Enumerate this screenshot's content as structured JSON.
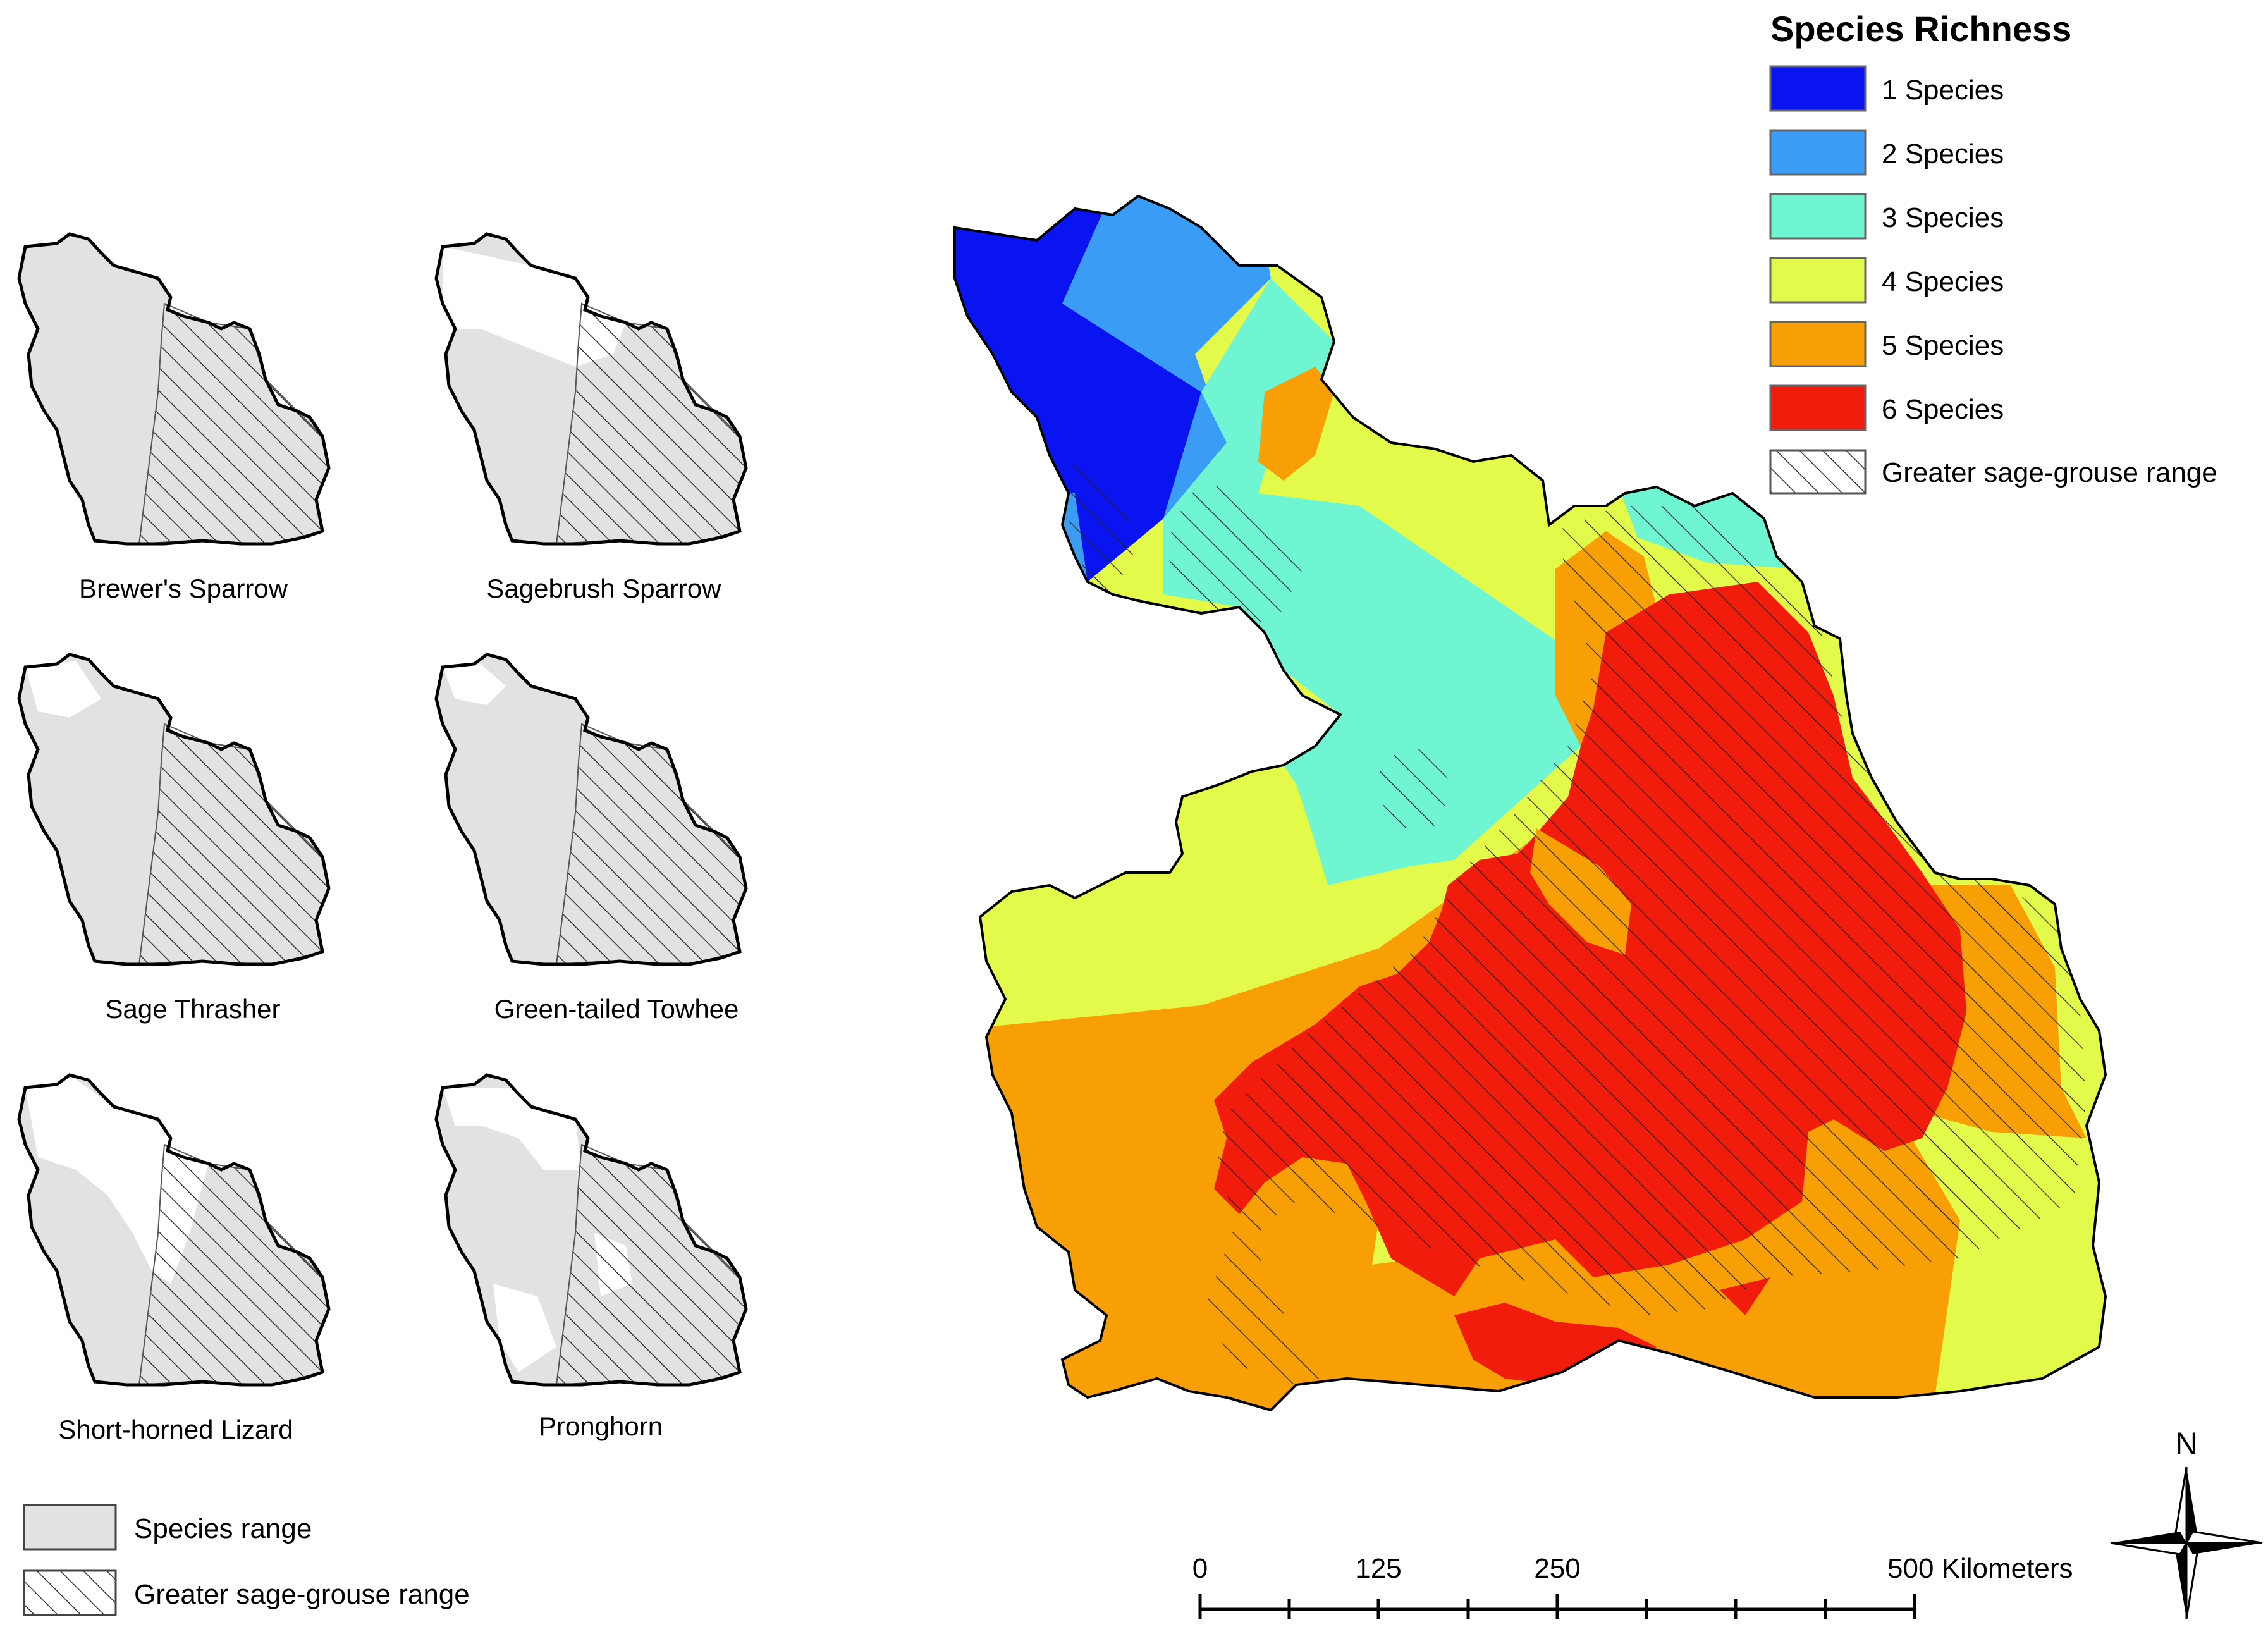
{
  "richness_legend": {
    "title": "Species Richness",
    "items": [
      {
        "label": "1 Species",
        "color": "#0a14f0"
      },
      {
        "label": "2 Species",
        "color": "#3b9cf5"
      },
      {
        "label": "3 Species",
        "color": "#6ff5d2"
      },
      {
        "label": "4 Species",
        "color": "#e4fa4a"
      },
      {
        "label": "5 Species",
        "color": "#f99f06"
      },
      {
        "label": "6 Species",
        "color": "#f21c0c"
      }
    ],
    "hatch_label": "Greater sage-grouse range"
  },
  "panels": [
    {
      "name": "Brewer's Sparrow"
    },
    {
      "name": "Sagebrush Sparrow"
    },
    {
      "name": "Sage Thrasher"
    },
    {
      "name": "Green-tailed Towhee"
    },
    {
      "name": "Short-horned Lizard"
    },
    {
      "name": "Pronghorn"
    }
  ],
  "small_legend": {
    "species_range_label": "Species range",
    "species_range_color": "#e2e2e2",
    "hatch_label": "Greater sage-grouse range"
  },
  "scale_bar": {
    "ticks": [
      "0",
      "125",
      "250",
      "500 Kilometers"
    ]
  },
  "north_arrow": {
    "label": "N"
  }
}
